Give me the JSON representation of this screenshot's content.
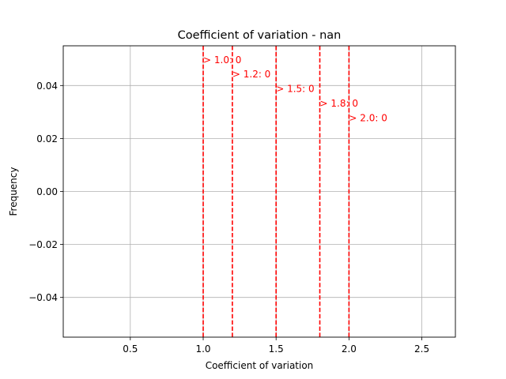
{
  "chart_data": {
    "type": "histogram",
    "title": "Coefficient of variation - nan",
    "xlabel": "Coefficient of variation",
    "ylabel": "Frequency",
    "xlim": [
      0.04,
      2.73
    ],
    "ylim": [
      -0.055,
      0.055
    ],
    "x_ticks": [
      0.5,
      1.0,
      1.5,
      2.0,
      2.5
    ],
    "x_tick_labels": [
      "0.5",
      "1.0",
      "1.5",
      "2.0",
      "2.5"
    ],
    "y_ticks": [
      0.04,
      0.02,
      0.0,
      -0.02,
      -0.04
    ],
    "y_tick_labels": [
      "0.04",
      "0.02",
      "0.00",
      "−0.02",
      "−0.04"
    ],
    "grid": true,
    "bars": [],
    "threshold_color": "#ff0000",
    "thresholds": [
      {
        "x": 1.0,
        "label": "> 1.0: 0",
        "label_y": 0.05
      },
      {
        "x": 1.2,
        "label": "> 1.2: 0",
        "label_y": 0.0445
      },
      {
        "x": 1.5,
        "label": "> 1.5: 0",
        "label_y": 0.039
      },
      {
        "x": 1.8,
        "label": "> 1.8: 0",
        "label_y": 0.0335
      },
      {
        "x": 2.0,
        "label": "> 2.0: 0",
        "label_y": 0.028
      }
    ]
  }
}
